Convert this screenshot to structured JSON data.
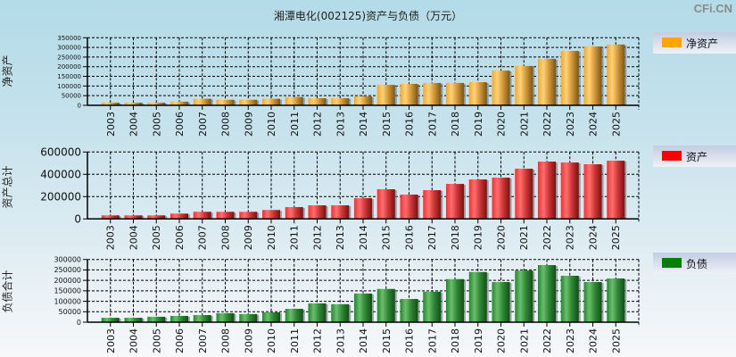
{
  "title": "湘潭电化(002125)资产与负债（万元）",
  "watermark": "CFi.CN",
  "chart_data": [
    {
      "type": "bar",
      "name": "net-assets",
      "ylabel": "净资产",
      "legend": "净资产",
      "legend_position": "right",
      "color": "#FFA500",
      "grid": true,
      "ylim": [
        0,
        350000
      ],
      "yticks": [
        0,
        50000,
        100000,
        150000,
        200000,
        250000,
        300000,
        350000
      ],
      "ytick_labels": [
        "0",
        "50000",
        "100000",
        "150000",
        "200000",
        "250000",
        "300000",
        "350000"
      ],
      "categories": [
        "2003",
        "2004",
        "2005",
        "2006",
        "2007",
        "2008",
        "2009",
        "2010",
        "2011",
        "2012",
        "2013",
        "2014",
        "2015",
        "2016",
        "2017",
        "2018",
        "2019",
        "2020",
        "2021",
        "2022",
        "2023",
        "2024",
        "2025"
      ],
      "values": [
        14000,
        14000,
        14000,
        19000,
        34000,
        29000,
        29000,
        34000,
        43000,
        37000,
        37000,
        46000,
        106000,
        111000,
        116000,
        116000,
        120000,
        180000,
        204000,
        241000,
        282000,
        305000,
        315000
      ]
    },
    {
      "type": "bar",
      "name": "total-assets",
      "ylabel": "资产总计",
      "legend": "资产",
      "legend_position": "right",
      "color": "#FF0000",
      "grid": true,
      "ylim": [
        0,
        600000
      ],
      "yticks": [
        0,
        200000,
        400000,
        600000
      ],
      "ytick_labels": [
        "0",
        "200000",
        "400000",
        "600000"
      ],
      "categories": [
        "2003",
        "2004",
        "2005",
        "2006",
        "2007",
        "2008",
        "2009",
        "2010",
        "2011",
        "2012",
        "2013",
        "2014",
        "2015",
        "2016",
        "2017",
        "2018",
        "2019",
        "2020",
        "2021",
        "2022",
        "2023",
        "2024",
        "2025"
      ],
      "values": [
        32000,
        32000,
        32000,
        48000,
        64000,
        64000,
        64000,
        80000,
        106000,
        122000,
        122000,
        186000,
        266000,
        218000,
        258000,
        314000,
        354000,
        370000,
        450000,
        514000,
        506000,
        490000,
        522000
      ]
    },
    {
      "type": "bar",
      "name": "total-liabilities",
      "ylabel": "负债合计",
      "legend": "负债",
      "legend_position": "right",
      "color": "#008000",
      "grid": true,
      "ylim": [
        0,
        300000
      ],
      "yticks": [
        0,
        50000,
        100000,
        150000,
        200000,
        250000,
        300000
      ],
      "ytick_labels": [
        "0",
        "50000",
        "100000",
        "150000",
        "200000",
        "250000",
        "300000"
      ],
      "categories": [
        "2003",
        "2004",
        "2005",
        "2006",
        "2007",
        "2008",
        "2009",
        "2010",
        "2011",
        "2012",
        "2013",
        "2014",
        "2015",
        "2016",
        "2017",
        "2018",
        "2019",
        "2020",
        "2021",
        "2022",
        "2023",
        "2024",
        "2025"
      ],
      "values": [
        21000,
        21000,
        26000,
        30000,
        34000,
        43000,
        39000,
        47000,
        64000,
        90000,
        86000,
        137000,
        159000,
        111000,
        146000,
        206000,
        240000,
        192000,
        247000,
        273000,
        222000,
        192000,
        209000
      ]
    }
  ]
}
